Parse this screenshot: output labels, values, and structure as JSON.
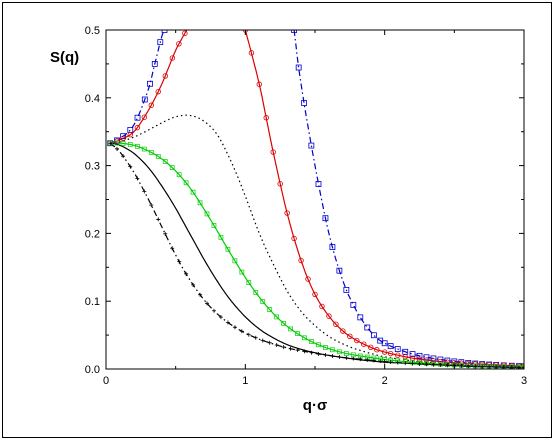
{
  "chart_data": {
    "type": "line",
    "title": "",
    "xlabel": "q·σ",
    "ylabel": "S(q)",
    "xlim": [
      0,
      3
    ],
    "ylim": [
      0,
      0.5
    ],
    "xticks": [
      "0",
      "1",
      "2",
      "3"
    ],
    "yticks": [
      "0.0",
      "0.1",
      "0.2",
      "0.3",
      "0.4",
      "0.5"
    ],
    "grid": false,
    "legend": "none",
    "series": [
      {
        "color": "#0000cc",
        "style": "dash-dot",
        "marker": "square",
        "segments": [
          {
            "x": [
              0.03,
              0.1,
              0.2,
              0.3,
              0.35,
              0.4,
              0.42
            ],
            "y": [
              0.333,
              0.34,
              0.36,
              0.41,
              0.45,
              0.49,
              0.5
            ]
          },
          {
            "x": [
              1.35,
              1.4,
              1.5,
              1.6,
              1.7,
              1.8,
              1.9,
              2.0,
              2.2,
              2.4,
              2.6,
              2.8,
              3.0
            ],
            "y": [
              0.5,
              0.42,
              0.3,
              0.2,
              0.13,
              0.085,
              0.055,
              0.038,
              0.022,
              0.014,
              0.009,
              0.006,
              0.004
            ]
          }
        ]
      },
      {
        "color": "#dd0000",
        "style": "solid",
        "marker": "circle",
        "segments": [
          {
            "x": [
              0.03,
              0.1,
              0.2,
              0.3,
              0.4,
              0.5,
              0.58
            ],
            "y": [
              0.333,
              0.338,
              0.35,
              0.38,
              0.42,
              0.47,
              0.5
            ]
          },
          {
            "x": [
              1.0,
              1.1,
              1.2,
              1.3,
              1.4,
              1.5,
              1.6,
              1.7,
              1.8,
              1.9,
              2.0,
              2.2,
              2.4,
              2.6,
              2.8,
              3.0
            ],
            "y": [
              0.5,
              0.42,
              0.32,
              0.23,
              0.16,
              0.11,
              0.078,
              0.056,
              0.042,
              0.032,
              0.025,
              0.016,
              0.011,
              0.008,
              0.006,
              0.004
            ]
          }
        ]
      },
      {
        "color": "#000000",
        "style": "dotted",
        "marker": "none",
        "x": [
          0.03,
          0.1,
          0.2,
          0.3,
          0.4,
          0.5,
          0.6,
          0.7,
          0.8,
          0.9,
          1.0,
          1.1,
          1.2,
          1.3,
          1.4,
          1.5,
          1.6,
          1.7,
          1.8,
          1.9,
          2.0,
          2.2,
          2.4,
          2.6,
          2.8,
          3.0
        ],
        "y": [
          0.333,
          0.335,
          0.342,
          0.352,
          0.363,
          0.372,
          0.374,
          0.366,
          0.345,
          0.305,
          0.255,
          0.2,
          0.155,
          0.115,
          0.085,
          0.064,
          0.048,
          0.037,
          0.029,
          0.023,
          0.018,
          0.012,
          0.008,
          0.006,
          0.004,
          0.003
        ]
      },
      {
        "color": "#00cc00",
        "style": "solid",
        "marker": "square-small",
        "x": [
          0.03,
          0.1,
          0.2,
          0.3,
          0.4,
          0.5,
          0.6,
          0.7,
          0.8,
          0.9,
          1.0,
          1.1,
          1.2,
          1.3,
          1.4,
          1.5,
          1.6,
          1.7,
          1.8,
          1.9,
          2.0,
          2.2,
          2.4,
          2.6,
          2.8,
          3.0
        ],
        "y": [
          0.333,
          0.333,
          0.33,
          0.322,
          0.31,
          0.292,
          0.268,
          0.237,
          0.203,
          0.168,
          0.135,
          0.106,
          0.082,
          0.063,
          0.049,
          0.038,
          0.03,
          0.024,
          0.02,
          0.017,
          0.014,
          0.01,
          0.007,
          0.005,
          0.004,
          0.003
        ]
      },
      {
        "color": "#000000",
        "style": "solid",
        "marker": "none",
        "x": [
          0.03,
          0.1,
          0.2,
          0.3,
          0.4,
          0.5,
          0.6,
          0.7,
          0.8,
          0.9,
          1.0,
          1.1,
          1.2,
          1.3,
          1.4,
          1.5,
          1.6,
          1.7,
          1.8,
          1.9,
          2.0,
          2.2,
          2.4,
          2.6,
          2.8,
          3.0
        ],
        "y": [
          0.333,
          0.33,
          0.318,
          0.298,
          0.27,
          0.237,
          0.2,
          0.163,
          0.129,
          0.1,
          0.077,
          0.059,
          0.046,
          0.036,
          0.029,
          0.024,
          0.02,
          0.017,
          0.014,
          0.012,
          0.01,
          0.008,
          0.006,
          0.004,
          0.003,
          0.002
        ]
      },
      {
        "color": "#000000",
        "style": "dash-dot",
        "marker": "plus",
        "x": [
          0.03,
          0.1,
          0.2,
          0.3,
          0.4,
          0.5,
          0.6,
          0.7,
          0.8,
          0.9,
          1.0,
          1.1,
          1.2,
          1.3,
          1.4,
          1.5,
          1.6,
          1.7,
          1.8,
          1.9,
          2.0,
          2.2,
          2.4,
          2.6,
          2.8,
          3.0
        ],
        "y": [
          0.333,
          0.32,
          0.29,
          0.252,
          0.21,
          0.168,
          0.132,
          0.103,
          0.081,
          0.065,
          0.053,
          0.044,
          0.037,
          0.031,
          0.027,
          0.023,
          0.02,
          0.017,
          0.015,
          0.013,
          0.011,
          0.008,
          0.006,
          0.004,
          0.003,
          0.002
        ]
      }
    ]
  }
}
